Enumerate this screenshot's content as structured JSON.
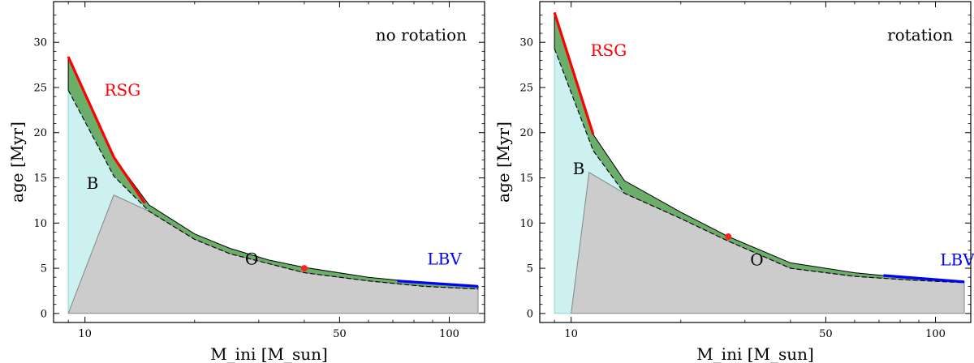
{
  "chart_data": [
    {
      "type": "area",
      "name": "no-rotation",
      "panel_label": "no rotation",
      "xlabel": "M_ini [M_sun]",
      "ylabel": "age [Myr]",
      "xscale": "log",
      "xlim": [
        8.2,
        125
      ],
      "ylim": [
        -1,
        34.5
      ],
      "x_ticks": [
        10,
        50,
        100
      ],
      "x_tick_labels": [
        "10",
        "50",
        "100"
      ],
      "y_ticks": [
        0,
        5,
        10,
        15,
        20,
        25,
        30
      ],
      "y_tick_labels": [
        "0",
        "5",
        "10",
        "15",
        "20",
        "25",
        "30"
      ],
      "regions": {
        "B": {
          "label": "B",
          "color": "#cdf1f1",
          "edge": "#89d9d9",
          "points": [
            [
              9,
              0
            ],
            [
              9,
              24.7
            ],
            [
              12,
              15.2
            ],
            [
              15,
              11.3
            ],
            [
              12,
              13.1
            ],
            [
              9,
              0
            ]
          ]
        },
        "O": {
          "label": "O",
          "color": "#cccccc",
          "edge": "#888888",
          "points": [
            [
              9,
              0
            ],
            [
              12,
              13.1
            ],
            [
              15,
              11.3
            ],
            [
              20,
              8.2
            ],
            [
              25,
              6.6
            ],
            [
              32,
              5.5
            ],
            [
              40,
              4.5
            ],
            [
              60,
              3.6
            ],
            [
              85,
              3.0
            ],
            [
              120,
              2.7
            ],
            [
              120,
              0
            ]
          ]
        },
        "He_band": {
          "color": "#6aae6a",
          "upper": [
            [
              9,
              28.4
            ],
            [
              12,
              17.3
            ],
            [
              15,
              12.0
            ],
            [
              20,
              8.8
            ],
            [
              25,
              7.2
            ],
            [
              32,
              5.9
            ],
            [
              40,
              5.1
            ],
            [
              60,
              4.0
            ],
            [
              85,
              3.4
            ],
            [
              120,
              3.0
            ]
          ],
          "lower": [
            [
              9,
              24.7
            ],
            [
              12,
              15.2
            ],
            [
              15,
              11.3
            ],
            [
              20,
              8.2
            ],
            [
              25,
              6.6
            ],
            [
              32,
              5.5
            ],
            [
              40,
              4.5
            ],
            [
              60,
              3.6
            ],
            [
              85,
              3.0
            ],
            [
              120,
              2.7
            ]
          ]
        }
      },
      "RSG": {
        "label": "RSG",
        "color": "#ff0000",
        "points": [
          [
            9,
            28.4
          ],
          [
            12,
            17.3
          ],
          [
            14.6,
            12.2
          ]
        ]
      },
      "LBV": {
        "label": "LBV",
        "color": "#0000ff",
        "points": [
          [
            72,
            3.6
          ],
          [
            120,
            3.0
          ]
        ]
      },
      "marker": {
        "x": 40,
        "y": 5.0,
        "color": "#ff2020"
      },
      "label_anchors": {
        "RSG": [
          11.3,
          24.1
        ],
        "B": [
          10.1,
          13.8
        ],
        "O": [
          27.5,
          5.4
        ],
        "LBV": [
          87,
          5.4
        ]
      }
    },
    {
      "type": "area",
      "name": "rotation",
      "panel_label": "rotation",
      "xlabel": "M_ini [M_sun]",
      "ylabel": "age [Myr]",
      "xscale": "log",
      "xlim": [
        8.2,
        125
      ],
      "ylim": [
        -1,
        34.5
      ],
      "x_ticks": [
        10,
        50,
        100
      ],
      "x_tick_labels": [
        "10",
        "50",
        "100"
      ],
      "y_ticks": [
        0,
        5,
        10,
        15,
        20,
        25,
        30
      ],
      "y_tick_labels": [
        "0",
        "5",
        "10",
        "15",
        "20",
        "25",
        "30"
      ],
      "regions": {
        "B": {
          "label": "B",
          "color": "#cdf1f1",
          "edge": "#89d9d9",
          "points": [
            [
              9,
              0
            ],
            [
              9,
              29.3
            ],
            [
              11.5,
              18.0
            ],
            [
              14,
              13.3
            ],
            [
              11.2,
              15.6
            ],
            [
              10,
              0
            ],
            [
              9,
              0
            ]
          ]
        },
        "O": {
          "label": "O",
          "color": "#cccccc",
          "edge": "#888888",
          "points": [
            [
              10,
              0
            ],
            [
              11.2,
              15.6
            ],
            [
              14,
              13.3
            ],
            [
              20,
              10.5
            ],
            [
              27,
              8.0
            ],
            [
              40,
              5.0
            ],
            [
              60,
              4.1
            ],
            [
              85,
              3.7
            ],
            [
              120,
              3.4
            ],
            [
              120,
              0
            ]
          ]
        },
        "He_band": {
          "color": "#6aae6a",
          "upper": [
            [
              9,
              33.3
            ],
            [
              11.5,
              19.8
            ],
            [
              14,
              14.7
            ],
            [
              20,
              11.2
            ],
            [
              27,
              8.5
            ],
            [
              40,
              5.6
            ],
            [
              60,
              4.5
            ],
            [
              85,
              3.9
            ],
            [
              120,
              3.5
            ]
          ],
          "lower": [
            [
              9,
              29.3
            ],
            [
              11.5,
              18.0
            ],
            [
              14,
              13.3
            ],
            [
              20,
              10.5
            ],
            [
              27,
              8.0
            ],
            [
              40,
              5.0
            ],
            [
              60,
              4.1
            ],
            [
              85,
              3.7
            ],
            [
              120,
              3.4
            ]
          ]
        }
      },
      "RSG": {
        "label": "RSG",
        "color": "#ff0000",
        "points": [
          [
            9,
            33.3
          ],
          [
            11.5,
            19.8
          ]
        ]
      },
      "LBV": {
        "label": "LBV",
        "color": "#0000ff",
        "points": [
          [
            72,
            4.2
          ],
          [
            120,
            3.5
          ]
        ]
      },
      "marker": {
        "x": 27,
        "y": 8.5,
        "color": "#ff2020"
      },
      "label_anchors": {
        "RSG": [
          11.3,
          28.5
        ],
        "B": [
          10.1,
          15.4
        ],
        "O": [
          31,
          5.3
        ],
        "LBV": [
          103,
          5.3
        ]
      }
    }
  ]
}
